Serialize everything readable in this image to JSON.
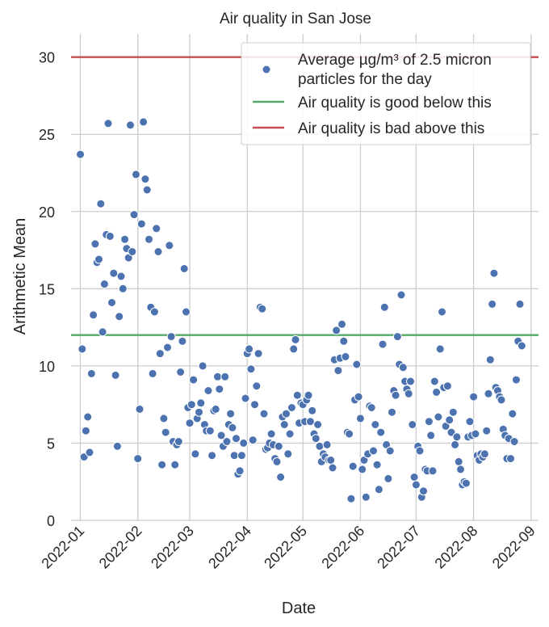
{
  "chart_data": {
    "type": "scatter",
    "title": "Air quality in San Jose",
    "xlabel": "Date",
    "ylabel": "Arithmetic Mean",
    "x_ticks": [
      "2022-01",
      "2022-02",
      "2022-03",
      "2022-04",
      "2022-05",
      "2022-06",
      "2022-07",
      "2022-08",
      "2022-09"
    ],
    "y_ticks": [
      0,
      5,
      10,
      15,
      20,
      25,
      30
    ],
    "xlim": [
      "2021-12-27",
      "2022-09-05"
    ],
    "ylim": [
      0,
      31.5
    ],
    "grid": true,
    "legend_position": "top-right",
    "colors": {
      "points": "#4c72b0",
      "good": "#55a868",
      "bad": "#c44e52",
      "grid": "#cccccc"
    },
    "legend": [
      {
        "label_line1": "Average µg/m³ of 2.5 micron",
        "label_line2": "particles for the day",
        "marker": "circle"
      },
      {
        "label": "Air quality is good below this",
        "marker": "line-green"
      },
      {
        "label": "Air quality is bad above this",
        "marker": "line-red"
      }
    ],
    "reference_lines": [
      {
        "name": "Air quality is good below this",
        "y": 12,
        "color": "#55a868"
      },
      {
        "name": "Air quality is bad above this",
        "y": 30,
        "color": "#c44e52"
      }
    ],
    "series": [
      {
        "name": "Average µg/m³ of 2.5 micron particles for the day",
        "points": [
          [
            "2022-01-01",
            23.7
          ],
          [
            "2022-01-02",
            11.1
          ],
          [
            "2022-01-03",
            4.1
          ],
          [
            "2022-01-04",
            5.8
          ],
          [
            "2022-01-05",
            6.7
          ],
          [
            "2022-01-06",
            4.4
          ],
          [
            "2022-01-07",
            9.5
          ],
          [
            "2022-01-08",
            13.3
          ],
          [
            "2022-01-09",
            17.9
          ],
          [
            "2022-01-10",
            16.7
          ],
          [
            "2022-01-11",
            16.9
          ],
          [
            "2022-01-12",
            20.5
          ],
          [
            "2022-01-13",
            12.2
          ],
          [
            "2022-01-14",
            15.3
          ],
          [
            "2022-01-15",
            18.5
          ],
          [
            "2022-01-16",
            25.7
          ],
          [
            "2022-01-17",
            18.4
          ],
          [
            "2022-01-18",
            14.1
          ],
          [
            "2022-01-19",
            16.0
          ],
          [
            "2022-01-20",
            9.4
          ],
          [
            "2022-01-21",
            4.8
          ],
          [
            "2022-01-22",
            13.2
          ],
          [
            "2022-01-23",
            15.8
          ],
          [
            "2022-01-24",
            15.0
          ],
          [
            "2022-01-25",
            18.2
          ],
          [
            "2022-01-26",
            17.6
          ],
          [
            "2022-01-27",
            17.0
          ],
          [
            "2022-01-28",
            25.6
          ],
          [
            "2022-01-29",
            17.4
          ],
          [
            "2022-01-30",
            19.8
          ],
          [
            "2022-01-31",
            22.4
          ],
          [
            "2022-02-01",
            4.0
          ],
          [
            "2022-02-02",
            7.2
          ],
          [
            "2022-02-03",
            19.2
          ],
          [
            "2022-02-04",
            25.8
          ],
          [
            "2022-02-05",
            22.1
          ],
          [
            "2022-02-06",
            21.4
          ],
          [
            "2022-02-07",
            18.2
          ],
          [
            "2022-02-08",
            13.8
          ],
          [
            "2022-02-09",
            9.5
          ],
          [
            "2022-02-10",
            13.5
          ],
          [
            "2022-02-11",
            18.9
          ],
          [
            "2022-02-12",
            17.4
          ],
          [
            "2022-02-13",
            10.8
          ],
          [
            "2022-02-14",
            3.6
          ],
          [
            "2022-02-15",
            6.6
          ],
          [
            "2022-02-16",
            5.7
          ],
          [
            "2022-02-17",
            11.2
          ],
          [
            "2022-02-18",
            17.8
          ],
          [
            "2022-02-19",
            11.9
          ],
          [
            "2022-02-20",
            5.1
          ],
          [
            "2022-02-21",
            3.6
          ],
          [
            "2022-02-22",
            4.9
          ],
          [
            "2022-02-23",
            5.1
          ],
          [
            "2022-02-24",
            9.6
          ],
          [
            "2022-02-25",
            11.6
          ],
          [
            "2022-02-26",
            16.3
          ],
          [
            "2022-02-27",
            13.5
          ],
          [
            "2022-02-28",
            7.3
          ],
          [
            "2022-03-01",
            6.3
          ],
          [
            "2022-03-02",
            7.5
          ],
          [
            "2022-03-03",
            9.1
          ],
          [
            "2022-03-04",
            4.3
          ],
          [
            "2022-03-05",
            6.6
          ],
          [
            "2022-03-06",
            7.0
          ],
          [
            "2022-03-07",
            7.6
          ],
          [
            "2022-03-08",
            10.0
          ],
          [
            "2022-03-09",
            6.2
          ],
          [
            "2022-03-10",
            5.8
          ],
          [
            "2022-03-11",
            8.4
          ],
          [
            "2022-03-12",
            5.8
          ],
          [
            "2022-03-13",
            4.2
          ],
          [
            "2022-03-14",
            7.1
          ],
          [
            "2022-03-15",
            7.2
          ],
          [
            "2022-03-16",
            9.3
          ],
          [
            "2022-03-17",
            8.5
          ],
          [
            "2022-03-18",
            5.5
          ],
          [
            "2022-03-19",
            4.8
          ],
          [
            "2022-03-20",
            9.3
          ],
          [
            "2022-03-21",
            5.1
          ],
          [
            "2022-03-22",
            6.2
          ],
          [
            "2022-03-23",
            6.9
          ],
          [
            "2022-03-24",
            6.0
          ],
          [
            "2022-03-25",
            4.2
          ],
          [
            "2022-03-26",
            5.3
          ],
          [
            "2022-03-27",
            3.0
          ],
          [
            "2022-03-28",
            3.2
          ],
          [
            "2022-03-29",
            4.2
          ],
          [
            "2022-03-30",
            5.0
          ],
          [
            "2022-03-31",
            7.9
          ],
          [
            "2022-04-01",
            10.8
          ],
          [
            "2022-04-02",
            11.1
          ],
          [
            "2022-04-03",
            9.8
          ],
          [
            "2022-04-04",
            5.2
          ],
          [
            "2022-04-05",
            7.5
          ],
          [
            "2022-04-06",
            8.7
          ],
          [
            "2022-04-07",
            10.8
          ],
          [
            "2022-04-08",
            13.8
          ],
          [
            "2022-04-09",
            13.7
          ],
          [
            "2022-04-10",
            6.9
          ],
          [
            "2022-04-11",
            4.6
          ],
          [
            "2022-04-12",
            4.7
          ],
          [
            "2022-04-13",
            5.0
          ],
          [
            "2022-04-14",
            5.6
          ],
          [
            "2022-04-15",
            4.9
          ],
          [
            "2022-04-16",
            4.0
          ],
          [
            "2022-04-17",
            3.8
          ],
          [
            "2022-04-18",
            4.8
          ],
          [
            "2022-04-19",
            2.8
          ],
          [
            "2022-04-20",
            6.7
          ],
          [
            "2022-04-21",
            6.2
          ],
          [
            "2022-04-22",
            6.9
          ],
          [
            "2022-04-23",
            4.3
          ],
          [
            "2022-04-24",
            5.6
          ],
          [
            "2022-04-25",
            7.3
          ],
          [
            "2022-04-26",
            11.1
          ],
          [
            "2022-04-27",
            11.7
          ],
          [
            "2022-04-28",
            8.1
          ],
          [
            "2022-04-29",
            6.3
          ],
          [
            "2022-04-30",
            7.6
          ],
          [
            "2022-05-01",
            7.5
          ],
          [
            "2022-05-02",
            6.4
          ],
          [
            "2022-05-03",
            7.8
          ],
          [
            "2022-05-04",
            8.1
          ],
          [
            "2022-05-05",
            6.4
          ],
          [
            "2022-05-06",
            7.1
          ],
          [
            "2022-05-07",
            5.6
          ],
          [
            "2022-05-08",
            5.3
          ],
          [
            "2022-05-09",
            6.2
          ],
          [
            "2022-05-10",
            4.8
          ],
          [
            "2022-05-11",
            3.8
          ],
          [
            "2022-05-12",
            4.3
          ],
          [
            "2022-05-13",
            4.1
          ],
          [
            "2022-05-14",
            4.9
          ],
          [
            "2022-05-15",
            3.9
          ],
          [
            "2022-05-16",
            3.9
          ],
          [
            "2022-05-17",
            3.4
          ],
          [
            "2022-05-18",
            10.4
          ],
          [
            "2022-05-19",
            12.3
          ],
          [
            "2022-05-20",
            9.7
          ],
          [
            "2022-05-21",
            10.5
          ],
          [
            "2022-05-22",
            12.7
          ],
          [
            "2022-05-23",
            11.6
          ],
          [
            "2022-05-24",
            10.6
          ],
          [
            "2022-05-25",
            5.7
          ],
          [
            "2022-05-26",
            5.6
          ],
          [
            "2022-05-27",
            1.4
          ],
          [
            "2022-05-28",
            3.5
          ],
          [
            "2022-05-29",
            7.8
          ],
          [
            "2022-05-30",
            10.1
          ],
          [
            "2022-05-31",
            8.0
          ],
          [
            "2022-06-01",
            6.6
          ],
          [
            "2022-06-02",
            3.3
          ],
          [
            "2022-06-03",
            3.9
          ],
          [
            "2022-06-04",
            1.5
          ],
          [
            "2022-06-05",
            4.3
          ],
          [
            "2022-06-06",
            7.4
          ],
          [
            "2022-06-07",
            7.3
          ],
          [
            "2022-06-08",
            4.5
          ],
          [
            "2022-06-09",
            6.2
          ],
          [
            "2022-06-10",
            3.6
          ],
          [
            "2022-06-11",
            2.0
          ],
          [
            "2022-06-12",
            5.7
          ],
          [
            "2022-06-13",
            11.4
          ],
          [
            "2022-06-14",
            13.8
          ],
          [
            "2022-06-15",
            4.9
          ],
          [
            "2022-06-16",
            2.7
          ],
          [
            "2022-06-17",
            4.5
          ],
          [
            "2022-06-18",
            7.0
          ],
          [
            "2022-06-19",
            8.4
          ],
          [
            "2022-06-20",
            8.1
          ],
          [
            "2022-06-21",
            11.9
          ],
          [
            "2022-06-22",
            10.1
          ],
          [
            "2022-06-23",
            14.6
          ],
          [
            "2022-06-24",
            9.9
          ],
          [
            "2022-06-25",
            9.0
          ],
          [
            "2022-06-26",
            8.5
          ],
          [
            "2022-06-27",
            8.2
          ],
          [
            "2022-06-28",
            9.0
          ],
          [
            "2022-06-29",
            6.2
          ],
          [
            "2022-06-30",
            2.8
          ],
          [
            "2022-07-01",
            2.3
          ],
          [
            "2022-07-02",
            4.8
          ],
          [
            "2022-07-03",
            4.5
          ],
          [
            "2022-07-04",
            1.5
          ],
          [
            "2022-07-05",
            1.9
          ],
          [
            "2022-07-06",
            3.3
          ],
          [
            "2022-07-07",
            3.2
          ],
          [
            "2022-07-08",
            6.4
          ],
          [
            "2022-07-09",
            5.5
          ],
          [
            "2022-07-10",
            3.2
          ],
          [
            "2022-07-11",
            9.0
          ],
          [
            "2022-07-12",
            8.3
          ],
          [
            "2022-07-13",
            6.7
          ],
          [
            "2022-07-14",
            11.1
          ],
          [
            "2022-07-15",
            13.5
          ],
          [
            "2022-07-16",
            8.6
          ],
          [
            "2022-07-17",
            6.1
          ],
          [
            "2022-07-18",
            8.7
          ],
          [
            "2022-07-19",
            6.5
          ],
          [
            "2022-07-20",
            5.7
          ],
          [
            "2022-07-21",
            7.0
          ],
          [
            "2022-07-22",
            4.9
          ],
          [
            "2022-07-23",
            5.4
          ],
          [
            "2022-07-24",
            3.8
          ],
          [
            "2022-07-25",
            3.3
          ],
          [
            "2022-07-26",
            2.3
          ],
          [
            "2022-07-27",
            2.5
          ],
          [
            "2022-07-28",
            2.4
          ],
          [
            "2022-07-29",
            5.4
          ],
          [
            "2022-07-30",
            6.4
          ],
          [
            "2022-07-31",
            5.5
          ],
          [
            "2022-08-01",
            8.0
          ],
          [
            "2022-08-02",
            5.6
          ],
          [
            "2022-08-03",
            4.2
          ],
          [
            "2022-08-04",
            3.9
          ],
          [
            "2022-08-05",
            4.3
          ],
          [
            "2022-08-06",
            4.1
          ],
          [
            "2022-08-07",
            4.3
          ],
          [
            "2022-08-08",
            5.8
          ],
          [
            "2022-08-09",
            8.2
          ],
          [
            "2022-08-10",
            10.4
          ],
          [
            "2022-08-11",
            14.0
          ],
          [
            "2022-08-12",
            16.0
          ],
          [
            "2022-08-13",
            8.6
          ],
          [
            "2022-08-14",
            8.4
          ],
          [
            "2022-08-15",
            8.0
          ],
          [
            "2022-08-16",
            7.8
          ],
          [
            "2022-08-17",
            5.9
          ],
          [
            "2022-08-18",
            5.5
          ],
          [
            "2022-08-19",
            4.0
          ],
          [
            "2022-08-20",
            5.3
          ],
          [
            "2022-08-21",
            4.0
          ],
          [
            "2022-08-22",
            6.9
          ],
          [
            "2022-08-23",
            5.1
          ],
          [
            "2022-08-24",
            9.1
          ],
          [
            "2022-08-25",
            11.6
          ],
          [
            "2022-08-26",
            14.0
          ],
          [
            "2022-08-27",
            11.3
          ]
        ]
      }
    ]
  }
}
